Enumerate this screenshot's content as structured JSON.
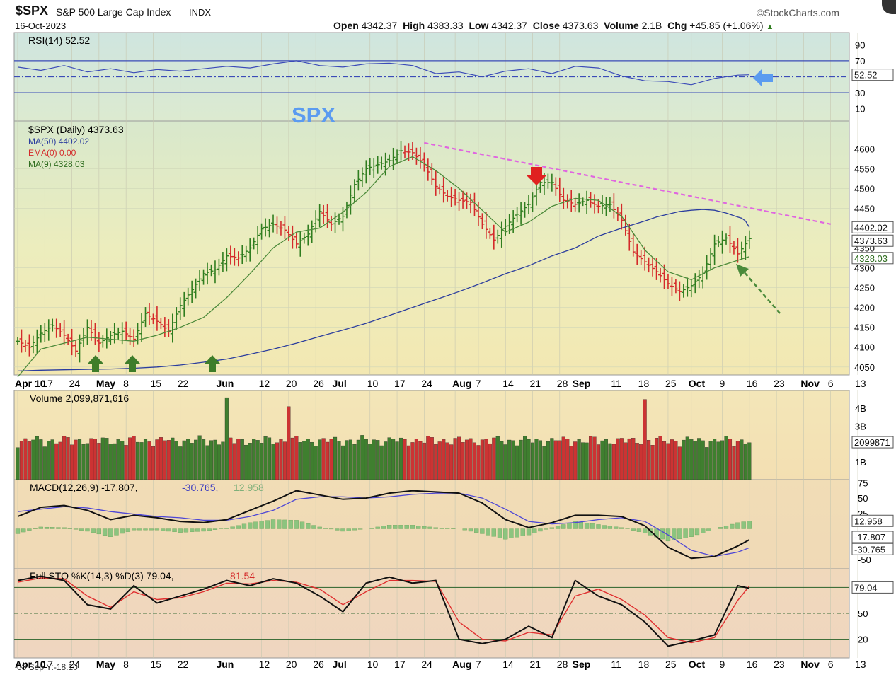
{
  "header": {
    "symbol": "$SPX",
    "name": "S&P 500 Large Cap Index",
    "exchange": "INDX",
    "source": "©StockCharts.com",
    "date": "16-Oct-2023",
    "open_label": "Open",
    "open": "4342.37",
    "high_label": "High",
    "high": "4383.33",
    "low_label": "Low",
    "low": "4342.37",
    "close_label": "Close",
    "close": "4373.63",
    "volume_label": "Volume",
    "volume": "2.1B",
    "chg_label": "Chg",
    "chg": "+45.85 (+1.06%)",
    "chg_arrow": "▲"
  },
  "annotation": {
    "text": "SPX",
    "color": "#5b9bf0"
  },
  "colors": {
    "up": "#2f7d1f",
    "down": "#d42a2a",
    "ma50": "#2b3d9e",
    "ma9": "#4c8a3a",
    "trend": "#e066e0",
    "arrow_green": "#3e7d2a",
    "arrow_red": "#e02020",
    "arrow_blue": "#5b9bf0"
  },
  "legends": {
    "rsi": "RSI(14) 52.52",
    "price": "$SPX (Daily) 4373.63",
    "ma50": "MA(50) 4402.02",
    "ema0": "EMA(0) 0.00",
    "ma9": "MA(9) 4328.03",
    "volume": "Volume 2,099,871,616",
    "macd_main": "MACD(12,26,9) -17.807,",
    "macd_signal": "-30.765,",
    "macd_hist": "12.958",
    "sto_main": "Full STO %K(14,3) %D(3) 79.04,",
    "sto_d": "81.54"
  },
  "badges": {
    "rsi": "52.52",
    "ma50": "4402.02",
    "close": "4373.63",
    "ma9": "4328.03",
    "volume": "2099871",
    "macd_hist": "12.958",
    "macd": "-17.807",
    "macd_signal": "-30.765",
    "sto": "79.04"
  },
  "footer_note": "08 Sep Y:-18.10",
  "chart_data": [
    {
      "type": "line",
      "title": "RSI(14)",
      "ylim": [
        0,
        100
      ],
      "yticks": [
        "90",
        "70",
        "30",
        "10"
      ],
      "reference_lines": [
        70,
        50,
        30
      ],
      "last": 52.52,
      "x_days": [
        0,
        6,
        12,
        18,
        24,
        30,
        36,
        42,
        48,
        54,
        60,
        66,
        72,
        78,
        84,
        90,
        96,
        102,
        108,
        114,
        120,
        126,
        132,
        138,
        144,
        150,
        156,
        162,
        168,
        174,
        180,
        186,
        189
      ],
      "values": [
        62,
        58,
        64,
        56,
        60,
        55,
        59,
        57,
        60,
        63,
        61,
        66,
        70,
        64,
        62,
        66,
        67,
        64,
        54,
        56,
        50,
        57,
        60,
        54,
        63,
        61,
        51,
        45,
        44,
        40,
        48,
        52,
        52.5
      ]
    },
    {
      "type": "bar",
      "title": "$SPX (Daily)",
      "ylim": [
        4030,
        4670
      ],
      "yticks": [
        "4600",
        "4550",
        "4500",
        "4450",
        "4400",
        "4350",
        "4300",
        "4250",
        "4200",
        "4150",
        "4100",
        "4050"
      ],
      "xticks": [
        {
          "d": 0,
          "t": "Apr 10"
        },
        {
          "d": 7,
          "t": "17"
        },
        {
          "d": 14,
          "t": "24"
        },
        {
          "d": 21,
          "t": "May"
        },
        {
          "d": 28,
          "t": "8"
        },
        {
          "d": 35,
          "t": "15"
        },
        {
          "d": 42,
          "t": "22"
        },
        {
          "d": 52,
          "t": "Jun"
        },
        {
          "d": 63,
          "t": "12"
        },
        {
          "d": 70,
          "t": "20"
        },
        {
          "d": 77,
          "t": "26"
        },
        {
          "d": 82,
          "t": "Jul"
        },
        {
          "d": 91,
          "t": "10"
        },
        {
          "d": 98,
          "t": "17"
        },
        {
          "d": 105,
          "t": "24"
        },
        {
          "d": 113,
          "t": "Aug"
        },
        {
          "d": 119,
          "t": "7"
        },
        {
          "d": 126,
          "t": "14"
        },
        {
          "d": 133,
          "t": "21"
        },
        {
          "d": 140,
          "t": "28"
        },
        {
          "d": 144,
          "t": "Sep"
        },
        {
          "d": 154,
          "t": "11"
        },
        {
          "d": 161,
          "t": "18"
        },
        {
          "d": 168,
          "t": "25"
        },
        {
          "d": 174,
          "t": "Oct"
        },
        {
          "d": 182,
          "t": "9"
        },
        {
          "d": 189,
          "t": "16"
        },
        {
          "d": 196,
          "t": "23"
        },
        {
          "d": 203,
          "t": "Nov"
        },
        {
          "d": 210,
          "t": "6"
        },
        {
          "d": 217,
          "t": "13"
        }
      ],
      "close_days": [
        0,
        3,
        6,
        9,
        12,
        15,
        18,
        21,
        24,
        27,
        30,
        33,
        36,
        39,
        42,
        45,
        48,
        51,
        54,
        57,
        60,
        63,
        66,
        69,
        72,
        75,
        78,
        81,
        84,
        87,
        90,
        93,
        96,
        99,
        102,
        105,
        108,
        111,
        114,
        117,
        120,
        123,
        126,
        129,
        132,
        135,
        138,
        141,
        144,
        147,
        150,
        153,
        156,
        159,
        162,
        165,
        168,
        171,
        174,
        177,
        180,
        183,
        186,
        189
      ],
      "close": [
        4115,
        4100,
        4135,
        4155,
        4130,
        4090,
        4150,
        4110,
        4130,
        4140,
        4120,
        4185,
        4165,
        4140,
        4205,
        4245,
        4285,
        4295,
        4330,
        4325,
        4350,
        4398,
        4410,
        4395,
        4360,
        4385,
        4442,
        4410,
        4430,
        4510,
        4550,
        4560,
        4570,
        4595,
        4590,
        4560,
        4505,
        4480,
        4470,
        4465,
        4410,
        4370,
        4405,
        4435,
        4460,
        4515,
        4515,
        4470,
        4460,
        4470,
        4455,
        4460,
        4420,
        4340,
        4315,
        4290,
        4260,
        4240,
        4255,
        4285,
        4360,
        4375,
        4335,
        4373.63
      ],
      "ma50": [
        4040,
        4042,
        4043,
        4044,
        4045,
        4047,
        4050,
        4055,
        4062,
        4070,
        4082,
        4095,
        4110,
        4127,
        4143,
        4160,
        4180,
        4200,
        4220,
        4240,
        4262,
        4285,
        4305,
        4330,
        4350,
        4380,
        4400,
        4418,
        4428,
        4435,
        4442,
        4445,
        4447,
        4445,
        4438,
        4428,
        4425,
        4418,
        4402
      ],
      "ma50_days": [
        0,
        6,
        12,
        18,
        24,
        30,
        36,
        42,
        48,
        54,
        60,
        66,
        72,
        78,
        84,
        90,
        96,
        102,
        108,
        114,
        120,
        126,
        132,
        138,
        144,
        150,
        156,
        162,
        165,
        168,
        171,
        174,
        177,
        180,
        183,
        186,
        187,
        188,
        189
      ],
      "ma9": [
        4025,
        4095,
        4110,
        4125,
        4120,
        4115,
        4130,
        4150,
        4175,
        4225,
        4285,
        4350,
        4390,
        4400,
        4440,
        4490,
        4555,
        4580,
        4545,
        4500,
        4445,
        4390,
        4415,
        4455,
        4475,
        4470,
        4430,
        4345,
        4290,
        4270,
        4300,
        4328.03
      ],
      "ma9_days": [
        0,
        6,
        12,
        18,
        24,
        30,
        36,
        42,
        48,
        54,
        60,
        66,
        72,
        78,
        84,
        90,
        96,
        102,
        108,
        114,
        120,
        126,
        132,
        138,
        144,
        150,
        156,
        162,
        168,
        174,
        180,
        189
      ],
      "trendline": [
        [
          105,
          4615
        ],
        [
          210,
          4410
        ]
      ]
    },
    {
      "type": "bar",
      "title": "Volume",
      "ylim": [
        0,
        5000000000
      ],
      "yticks": [
        "4B",
        "3B",
        "1B"
      ],
      "spikes": [
        {
          "d": 54,
          "v": 4600000000
        },
        {
          "d": 70,
          "v": 4100000000
        },
        {
          "d": 162,
          "v": 4500000000
        }
      ],
      "last": 2099871616
    },
    {
      "type": "line",
      "title": "MACD(12,26,9)",
      "ylim": [
        -65,
        80
      ],
      "yticks": [
        "75",
        "50",
        "25",
        "-50"
      ],
      "days": [
        0,
        6,
        12,
        18,
        24,
        30,
        36,
        42,
        48,
        54,
        60,
        66,
        72,
        78,
        84,
        90,
        96,
        102,
        108,
        114,
        120,
        126,
        132,
        138,
        144,
        150,
        156,
        162,
        168,
        174,
        180,
        186,
        189
      ],
      "macd": [
        20,
        35,
        38,
        30,
        15,
        22,
        18,
        12,
        10,
        15,
        30,
        45,
        62,
        55,
        48,
        50,
        58,
        62,
        60,
        58,
        42,
        15,
        2,
        10,
        22,
        22,
        20,
        5,
        -30,
        -48,
        -45,
        -28,
        -17.807
      ],
      "signal": [
        28,
        32,
        36,
        34,
        28,
        24,
        20,
        18,
        14,
        14,
        20,
        30,
        48,
        52,
        52,
        50,
        52,
        56,
        58,
        58,
        50,
        32,
        12,
        8,
        10,
        15,
        18,
        12,
        -10,
        -35,
        -45,
        -38,
        -30.765
      ],
      "histogram_last": 12.958
    },
    {
      "type": "line",
      "title": "Full STO %K(14,3) %D(3)",
      "ylim": [
        0,
        100
      ],
      "yticks": [
        "50",
        "20"
      ],
      "reference_lines": [
        80,
        50,
        20
      ],
      "days": [
        0,
        6,
        12,
        18,
        24,
        30,
        36,
        42,
        48,
        54,
        60,
        66,
        72,
        78,
        84,
        90,
        96,
        102,
        108,
        114,
        120,
        126,
        132,
        138,
        144,
        150,
        156,
        162,
        168,
        174,
        180,
        186,
        189
      ],
      "k": [
        88,
        93,
        88,
        60,
        55,
        82,
        62,
        70,
        78,
        88,
        82,
        90,
        85,
        70,
        52,
        85,
        92,
        85,
        88,
        20,
        15,
        20,
        35,
        22,
        88,
        70,
        60,
        40,
        12,
        18,
        25,
        82,
        79.04
      ],
      "d": [
        86,
        91,
        90,
        70,
        57,
        75,
        66,
        68,
        75,
        85,
        84,
        88,
        86,
        78,
        60,
        75,
        88,
        88,
        87,
        40,
        20,
        18,
        28,
        25,
        70,
        78,
        66,
        48,
        22,
        16,
        22,
        65,
        81.54
      ]
    }
  ]
}
